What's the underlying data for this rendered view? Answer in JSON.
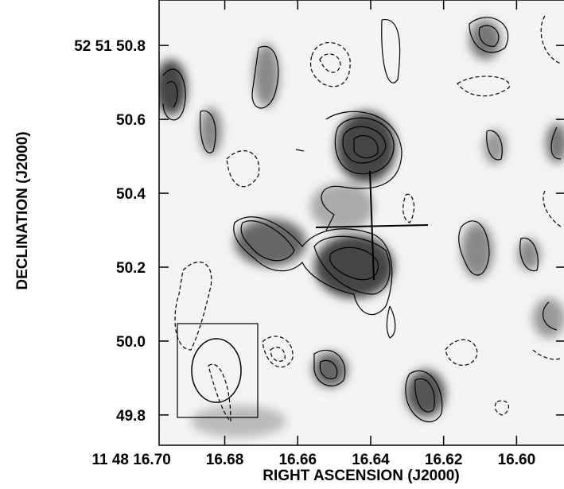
{
  "chart_data": {
    "type": "contour",
    "xlabel": "RIGHT ASCENSION (J2000)",
    "ylabel": "DECLINATION (J2000)",
    "xlim": [
      16.698,
      16.587
    ],
    "ylim": [
      49.718,
      50.923
    ],
    "xticks": [
      {
        "value": 16.7,
        "label": "11 48 16.70"
      },
      16.68,
      16.66,
      16.64,
      16.62,
      {
        "value": 16.6,
        "label": "16.60"
      }
    ],
    "yticks": [
      {
        "value": 50.8,
        "label": "52 51 50.8"
      },
      50.6,
      50.4,
      50.2,
      {
        "value": 50.0,
        "label": "50.0"
      },
      49.8
    ]
  }
}
